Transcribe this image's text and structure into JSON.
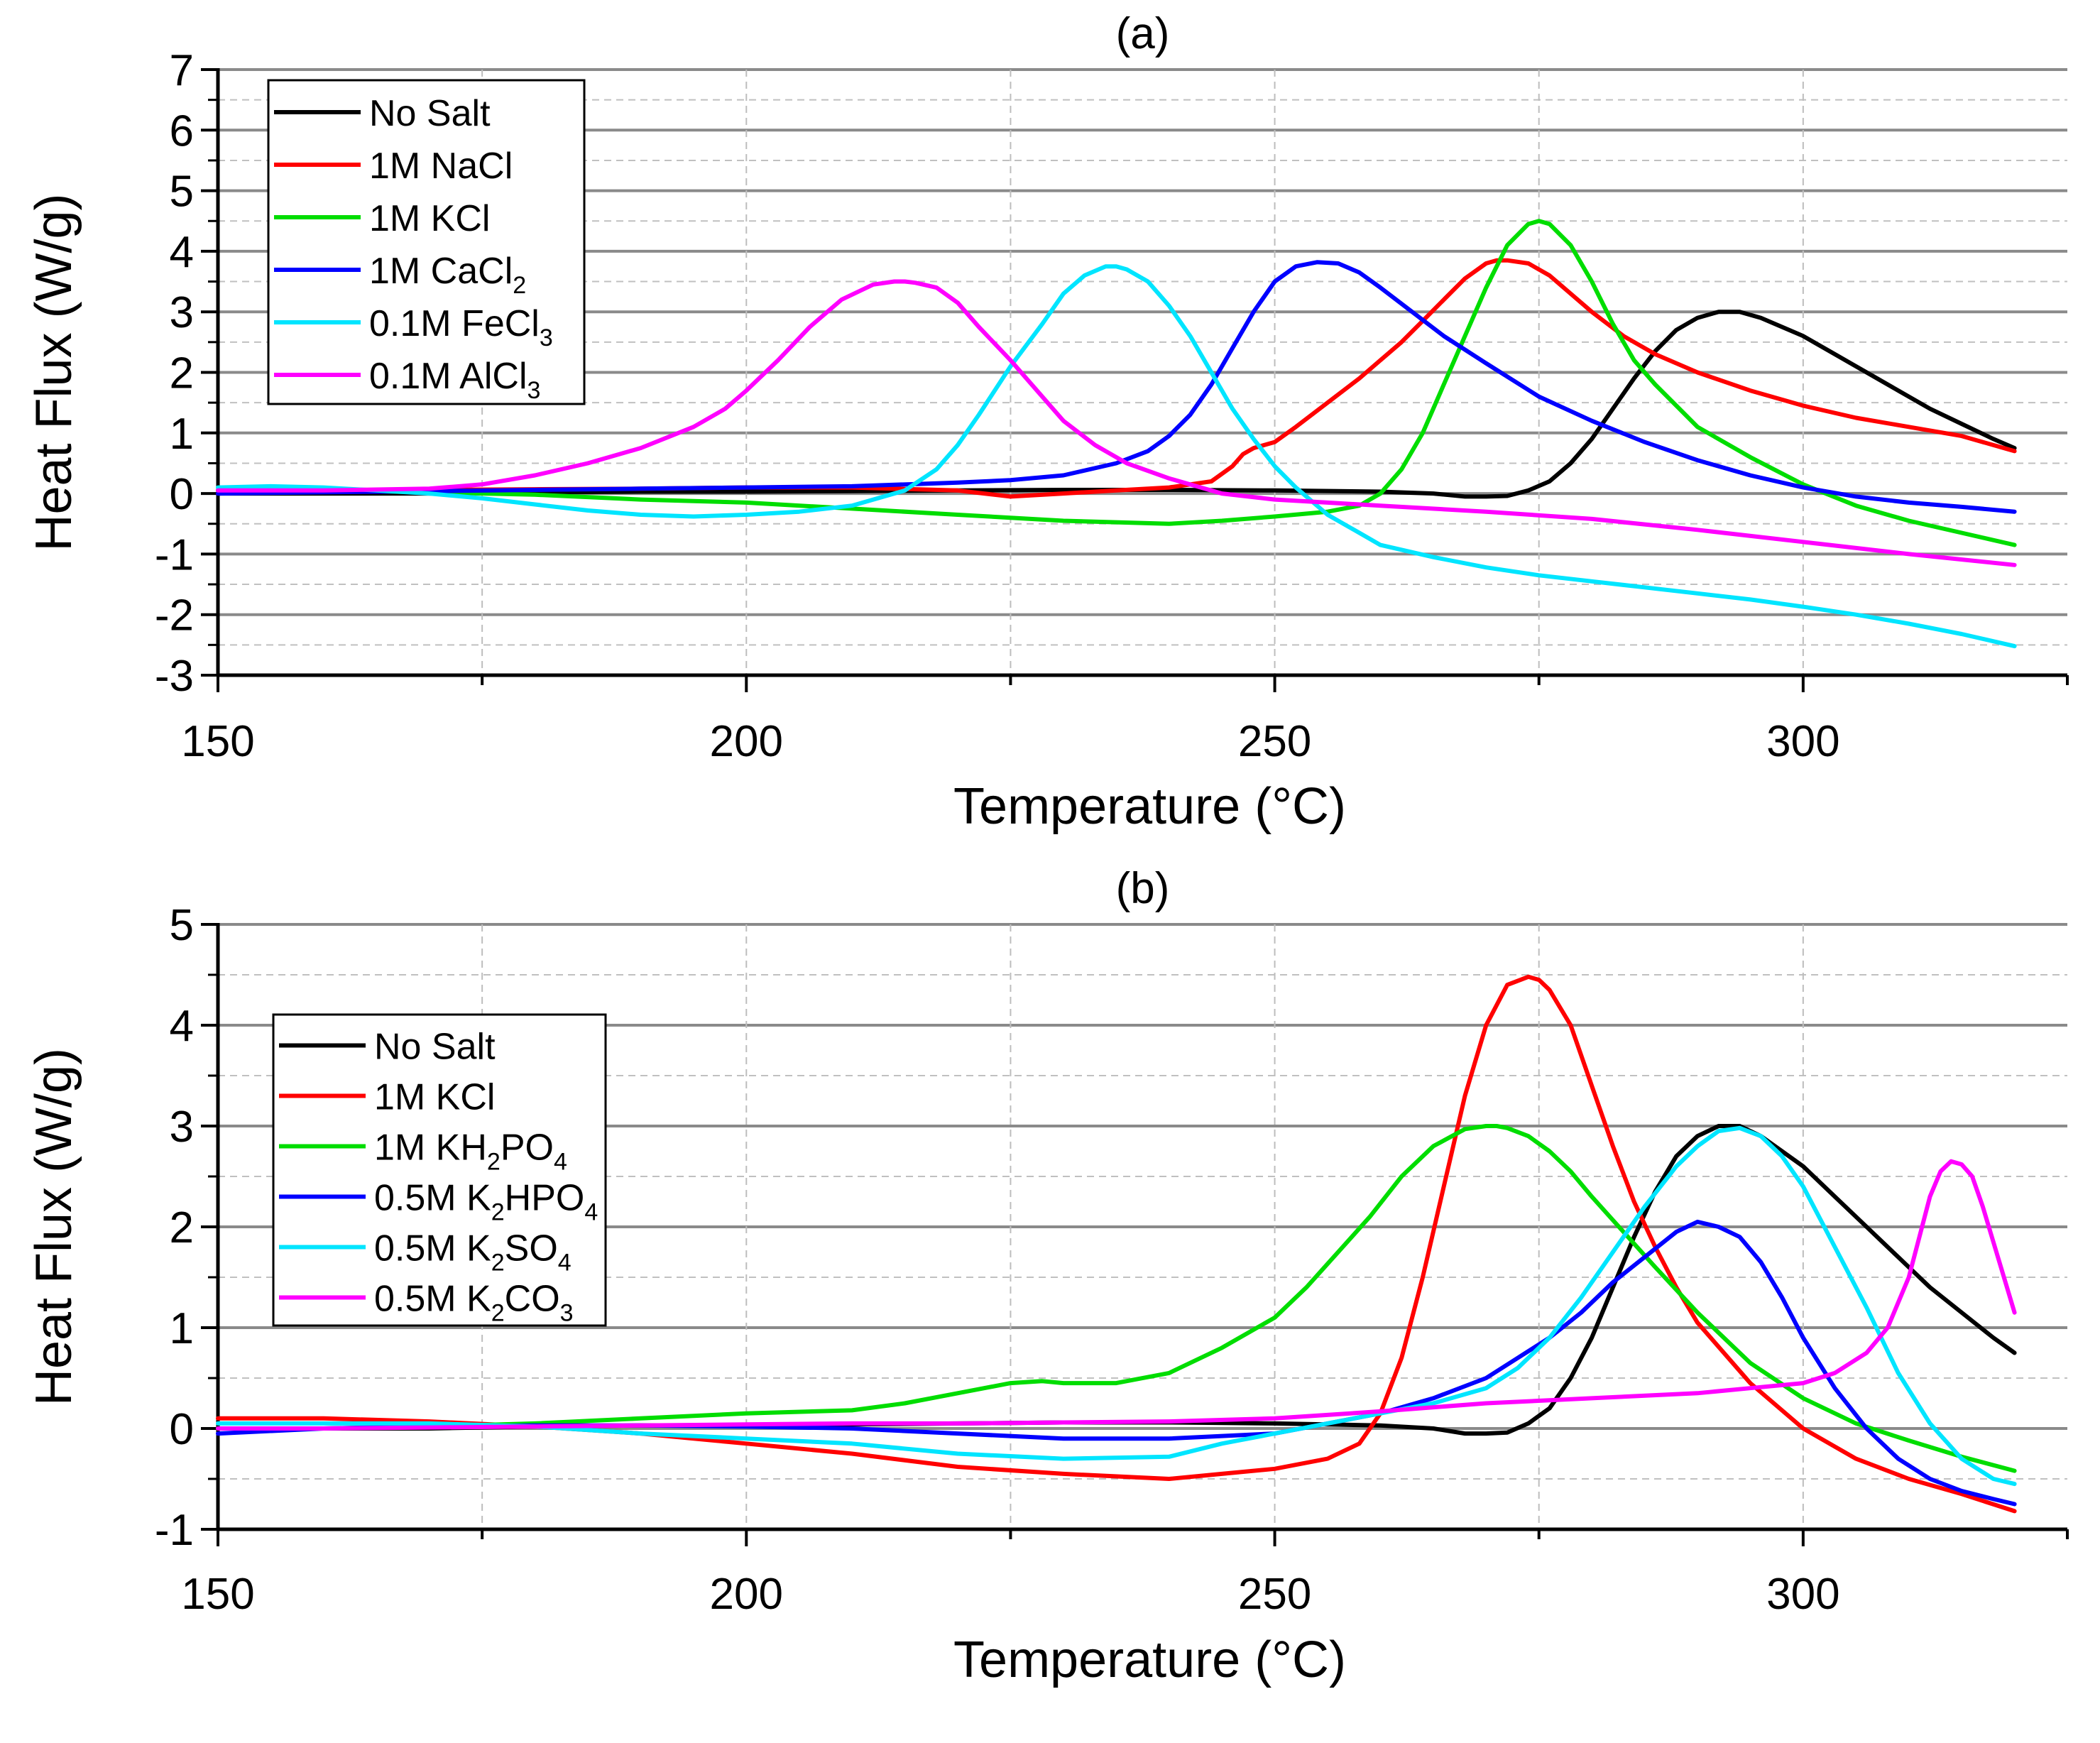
{
  "chart_data": [
    {
      "type": "line",
      "panel": "a",
      "title": "(a)",
      "xlabel": "Temperature (°C)",
      "ylabel": "Heat Flux (W/g)",
      "xlim": [
        150,
        325
      ],
      "ylim": [
        -3,
        7
      ],
      "xticks": [
        150,
        200,
        250,
        300
      ],
      "xtick_labels": [
        "150",
        "200",
        "250",
        "300"
      ],
      "yticks": [
        -3,
        -2,
        -1,
        0,
        1,
        2,
        3,
        4,
        5,
        6,
        7
      ],
      "ytick_labels": [
        "-3",
        "-2",
        "-1",
        "0",
        "1",
        "2",
        "3",
        "4",
        "5",
        "6",
        "7"
      ],
      "grid": true,
      "legend_position": "top-left",
      "series": [
        {
          "name": "No Salt",
          "label": "No Salt",
          "color": "#000000",
          "x": [
            150,
            160,
            170,
            180,
            190,
            200,
            210,
            220,
            230,
            240,
            250,
            260,
            265,
            268,
            270,
            272,
            274,
            276,
            278,
            280,
            282,
            284,
            286,
            288,
            290,
            292,
            294,
            296,
            298,
            300,
            303,
            306,
            309,
            312,
            315,
            318,
            320
          ],
          "y": [
            0.0,
            0.0,
            0.0,
            0.02,
            0.03,
            0.03,
            0.04,
            0.05,
            0.06,
            0.06,
            0.05,
            0.03,
            0.0,
            -0.05,
            -0.05,
            -0.04,
            0.05,
            0.2,
            0.5,
            0.9,
            1.4,
            1.9,
            2.35,
            2.7,
            2.9,
            3.0,
            3.0,
            2.9,
            2.75,
            2.6,
            2.3,
            2.0,
            1.7,
            1.4,
            1.15,
            0.9,
            0.75
          ]
        },
        {
          "name": "1M NaCl",
          "label": "1M NaCl",
          "color": "#ff0000",
          "x": [
            150,
            160,
            170,
            180,
            190,
            200,
            210,
            220,
            225,
            230,
            235,
            240,
            244,
            246,
            247,
            248,
            249,
            250,
            252,
            255,
            258,
            260,
            262,
            264,
            266,
            268,
            270,
            271,
            272,
            274,
            276,
            278,
            280,
            283,
            286,
            290,
            295,
            300,
            305,
            310,
            315,
            320
          ],
          "y": [
            0.05,
            0.05,
            0.06,
            0.07,
            0.08,
            0.1,
            0.1,
            0.05,
            -0.05,
            0.0,
            0.05,
            0.1,
            0.2,
            0.45,
            0.65,
            0.75,
            0.8,
            0.85,
            1.1,
            1.5,
            1.9,
            2.2,
            2.5,
            2.85,
            3.2,
            3.55,
            3.8,
            3.85,
            3.85,
            3.8,
            3.6,
            3.3,
            3.0,
            2.6,
            2.3,
            2.0,
            1.7,
            1.45,
            1.25,
            1.1,
            0.95,
            0.7
          ]
        },
        {
          "name": "1M KCl",
          "label": "1M KCl",
          "color": "#00dd00",
          "x": [
            150,
            160,
            170,
            180,
            190,
            200,
            210,
            220,
            230,
            240,
            245,
            250,
            255,
            258,
            260,
            262,
            264,
            266,
            268,
            270,
            272,
            274,
            275,
            276,
            278,
            280,
            282,
            284,
            286,
            288,
            290,
            295,
            300,
            305,
            310,
            315,
            320
          ],
          "y": [
            0.05,
            0.05,
            0.02,
            -0.02,
            -0.1,
            -0.15,
            -0.25,
            -0.35,
            -0.45,
            -0.5,
            -0.45,
            -0.38,
            -0.3,
            -0.2,
            0.0,
            0.4,
            1.0,
            1.8,
            2.6,
            3.4,
            4.1,
            4.45,
            4.5,
            4.45,
            4.1,
            3.5,
            2.8,
            2.2,
            1.8,
            1.45,
            1.1,
            0.6,
            0.15,
            -0.2,
            -0.45,
            -0.65,
            -0.85
          ]
        },
        {
          "name": "1M CaCl",
          "label": "1M CaCl",
          "sub": "2",
          "color": "#0000ff",
          "x": [
            150,
            160,
            170,
            180,
            190,
            200,
            210,
            220,
            225,
            230,
            235,
            238,
            240,
            242,
            244,
            246,
            248,
            250,
            252,
            254,
            256,
            258,
            260,
            263,
            266,
            270,
            275,
            280,
            285,
            290,
            295,
            300,
            305,
            310,
            315,
            320
          ],
          "y": [
            0.0,
            0.02,
            0.04,
            0.06,
            0.08,
            0.1,
            0.12,
            0.18,
            0.22,
            0.3,
            0.5,
            0.7,
            0.95,
            1.3,
            1.8,
            2.4,
            3.0,
            3.5,
            3.75,
            3.82,
            3.8,
            3.65,
            3.4,
            3.0,
            2.6,
            2.15,
            1.6,
            1.2,
            0.85,
            0.55,
            0.3,
            0.1,
            -0.05,
            -0.15,
            -0.22,
            -0.3
          ]
        },
        {
          "name": "0.1M FeCl",
          "label": "0.1M FeCl",
          "sub": "3",
          "color": "#00e5ff",
          "x": [
            150,
            155,
            160,
            165,
            170,
            175,
            180,
            185,
            190,
            195,
            200,
            205,
            210,
            215,
            218,
            220,
            222,
            225,
            228,
            230,
            232,
            234,
            235,
            236,
            238,
            240,
            242,
            244,
            246,
            248,
            250,
            252,
            255,
            258,
            260,
            265,
            270,
            275,
            280,
            285,
            290,
            295,
            300,
            305,
            310,
            315,
            320
          ],
          "y": [
            0.1,
            0.12,
            0.1,
            0.05,
            0.0,
            -0.08,
            -0.18,
            -0.28,
            -0.35,
            -0.38,
            -0.35,
            -0.3,
            -0.2,
            0.05,
            0.4,
            0.8,
            1.3,
            2.1,
            2.8,
            3.3,
            3.6,
            3.75,
            3.75,
            3.7,
            3.5,
            3.1,
            2.6,
            2.0,
            1.4,
            0.9,
            0.45,
            0.1,
            -0.35,
            -0.65,
            -0.85,
            -1.05,
            -1.22,
            -1.35,
            -1.45,
            -1.55,
            -1.65,
            -1.75,
            -1.87,
            -2.0,
            -2.15,
            -2.32,
            -2.52
          ]
        },
        {
          "name": "0.1M AlCl",
          "label": "0.1M AlCl",
          "sub": "3",
          "color": "#ff00ff",
          "x": [
            150,
            160,
            170,
            175,
            180,
            185,
            190,
            195,
            198,
            200,
            203,
            206,
            209,
            212,
            214,
            215,
            216,
            218,
            220,
            222,
            225,
            228,
            230,
            233,
            236,
            240,
            245,
            250,
            255,
            260,
            270,
            280,
            290,
            300,
            310,
            320
          ],
          "y": [
            0.05,
            0.05,
            0.08,
            0.15,
            0.3,
            0.5,
            0.75,
            1.1,
            1.4,
            1.7,
            2.2,
            2.75,
            3.2,
            3.45,
            3.5,
            3.5,
            3.48,
            3.4,
            3.15,
            2.75,
            2.2,
            1.6,
            1.2,
            0.8,
            0.5,
            0.25,
            0.0,
            -0.1,
            -0.15,
            -0.2,
            -0.3,
            -0.42,
            -0.6,
            -0.8,
            -1.0,
            -1.18
          ]
        }
      ]
    },
    {
      "type": "line",
      "panel": "b",
      "title": "(b)",
      "xlabel": "Temperature (°C)",
      "ylabel": "Heat Flux (W/g)",
      "xlim": [
        150,
        325
      ],
      "ylim": [
        -1,
        5
      ],
      "xticks": [
        150,
        200,
        250,
        300
      ],
      "xtick_labels": [
        "150",
        "200",
        "250",
        "300"
      ],
      "yticks": [
        -1,
        0,
        1,
        2,
        3,
        4,
        5
      ],
      "ytick_labels": [
        "-1",
        "0",
        "1",
        "2",
        "3",
        "4",
        "5"
      ],
      "grid": true,
      "legend_position": "middle-left",
      "series": [
        {
          "name": "No Salt",
          "label": "No Salt",
          "color": "#000000",
          "x": [
            150,
            160,
            170,
            180,
            190,
            200,
            210,
            220,
            230,
            240,
            250,
            260,
            265,
            268,
            270,
            272,
            274,
            276,
            278,
            280,
            282,
            284,
            286,
            288,
            290,
            292,
            294,
            296,
            298,
            300,
            303,
            306,
            309,
            312,
            315,
            318,
            320
          ],
          "y": [
            0.0,
            0.0,
            0.0,
            0.02,
            0.03,
            0.03,
            0.04,
            0.05,
            0.06,
            0.06,
            0.05,
            0.03,
            0.0,
            -0.05,
            -0.05,
            -0.04,
            0.05,
            0.2,
            0.5,
            0.9,
            1.4,
            1.9,
            2.35,
            2.7,
            2.9,
            3.0,
            3.0,
            2.9,
            2.75,
            2.6,
            2.3,
            2.0,
            1.7,
            1.4,
            1.15,
            0.9,
            0.75
          ]
        },
        {
          "name": "1M KCl",
          "label": "1M KCl",
          "color": "#ff0000",
          "x": [
            150,
            160,
            170,
            180,
            190,
            200,
            210,
            220,
            230,
            240,
            245,
            250,
            255,
            258,
            260,
            262,
            264,
            266,
            268,
            270,
            272,
            274,
            275,
            276,
            278,
            280,
            282,
            284,
            286,
            288,
            290,
            295,
            300,
            305,
            310,
            315,
            320
          ],
          "y": [
            0.1,
            0.1,
            0.07,
            0.02,
            -0.05,
            -0.15,
            -0.25,
            -0.38,
            -0.45,
            -0.5,
            -0.45,
            -0.4,
            -0.3,
            -0.15,
            0.15,
            0.7,
            1.5,
            2.4,
            3.3,
            4.0,
            4.4,
            4.48,
            4.45,
            4.35,
            4.0,
            3.4,
            2.8,
            2.25,
            1.8,
            1.4,
            1.05,
            0.45,
            0.0,
            -0.3,
            -0.5,
            -0.65,
            -0.82
          ]
        },
        {
          "name": "1M KH",
          "label": "1M KH",
          "sub": "2",
          "label2": "PO",
          "sub2": "4",
          "color": "#00dd00",
          "x": [
            150,
            160,
            170,
            180,
            190,
            200,
            210,
            215,
            220,
            225,
            228,
            230,
            235,
            240,
            245,
            250,
            253,
            256,
            259,
            262,
            265,
            268,
            270,
            271,
            272,
            274,
            276,
            278,
            280,
            283,
            286,
            290,
            295,
            300,
            305,
            310,
            315,
            320
          ],
          "y": [
            0.0,
            0.0,
            0.02,
            0.05,
            0.1,
            0.15,
            0.18,
            0.25,
            0.35,
            0.45,
            0.47,
            0.45,
            0.45,
            0.55,
            0.8,
            1.1,
            1.4,
            1.75,
            2.1,
            2.5,
            2.8,
            2.97,
            3.0,
            3.0,
            2.98,
            2.9,
            2.75,
            2.55,
            2.3,
            1.95,
            1.6,
            1.15,
            0.65,
            0.3,
            0.05,
            -0.12,
            -0.28,
            -0.42
          ]
        },
        {
          "name": "0.5M K",
          "label": "0.5M K",
          "sub": "2",
          "label2": "HPO",
          "sub2": "4",
          "color": "#0000ff",
          "x": [
            150,
            160,
            170,
            180,
            190,
            200,
            210,
            220,
            230,
            240,
            250,
            255,
            260,
            265,
            270,
            273,
            276,
            279,
            282,
            285,
            288,
            290,
            292,
            294,
            296,
            298,
            300,
            303,
            306,
            309,
            312,
            315,
            318,
            320
          ],
          "y": [
            -0.05,
            0.0,
            0.02,
            0.03,
            0.03,
            0.02,
            0.0,
            -0.05,
            -0.1,
            -0.1,
            -0.05,
            0.05,
            0.15,
            0.3,
            0.5,
            0.7,
            0.9,
            1.15,
            1.45,
            1.7,
            1.95,
            2.05,
            2.0,
            1.9,
            1.65,
            1.3,
            0.9,
            0.4,
            0.0,
            -0.3,
            -0.5,
            -0.62,
            -0.7,
            -0.75
          ]
        },
        {
          "name": "0.5M K",
          "label": "0.5M K",
          "sub": "2",
          "label2": "SO",
          "sub2": "4",
          "color": "#00e5ff",
          "x": [
            150,
            160,
            170,
            180,
            190,
            200,
            210,
            220,
            230,
            240,
            245,
            250,
            255,
            260,
            265,
            270,
            273,
            276,
            279,
            282,
            285,
            288,
            290,
            292,
            294,
            296,
            298,
            300,
            303,
            306,
            309,
            312,
            315,
            318,
            320
          ],
          "y": [
            0.05,
            0.05,
            0.05,
            0.02,
            -0.05,
            -0.1,
            -0.15,
            -0.25,
            -0.3,
            -0.28,
            -0.15,
            -0.05,
            0.05,
            0.15,
            0.25,
            0.4,
            0.6,
            0.9,
            1.3,
            1.75,
            2.2,
            2.6,
            2.8,
            2.95,
            2.98,
            2.9,
            2.7,
            2.4,
            1.8,
            1.2,
            0.55,
            0.05,
            -0.3,
            -0.5,
            -0.55
          ]
        },
        {
          "name": "0.5M K",
          "label": "0.5M K",
          "sub": "2",
          "label2": "CO",
          "sub2": "3",
          "color": "#ff00ff",
          "x": [
            150,
            160,
            170,
            180,
            190,
            200,
            210,
            220,
            230,
            240,
            250,
            260,
            270,
            280,
            290,
            295,
            300,
            303,
            306,
            308,
            310,
            311,
            312,
            313,
            314,
            315,
            316,
            317,
            318,
            319,
            320
          ],
          "y": [
            0.0,
            0.0,
            0.01,
            0.02,
            0.03,
            0.04,
            0.05,
            0.05,
            0.06,
            0.07,
            0.1,
            0.17,
            0.25,
            0.3,
            0.35,
            0.4,
            0.45,
            0.55,
            0.75,
            1.0,
            1.5,
            1.9,
            2.3,
            2.55,
            2.65,
            2.62,
            2.5,
            2.2,
            1.85,
            1.5,
            1.15
          ]
        }
      ]
    }
  ]
}
